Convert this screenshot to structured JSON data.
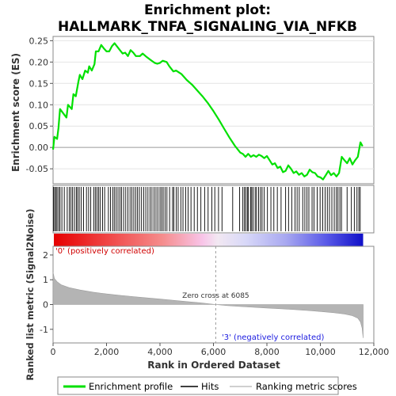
{
  "chart_data": {
    "type": "line",
    "title_line1": "Enrichment plot:",
    "title_line2": "HALLMARK_TNFA_SIGNALING_VIA_NFKB",
    "top_panel": {
      "ylabel": "Enrichment score (ES)",
      "ylim": [
        -0.085,
        0.26
      ],
      "yticks": [
        "0.25",
        "0.20",
        "0.15",
        "0.10",
        "0.05",
        "0.00",
        "-0.05"
      ],
      "ytick_values": [
        0.25,
        0.2,
        0.15,
        0.1,
        0.05,
        0.0,
        -0.05
      ],
      "series_name": "Enrichment profile",
      "series_color": "#00e000",
      "points": [
        [
          0,
          -0.005
        ],
        [
          50,
          0.025
        ],
        [
          150,
          0.02
        ],
        [
          200,
          0.045
        ],
        [
          260,
          0.09
        ],
        [
          500,
          0.07
        ],
        [
          560,
          0.1
        ],
        [
          700,
          0.09
        ],
        [
          760,
          0.125
        ],
        [
          850,
          0.12
        ],
        [
          950,
          0.155
        ],
        [
          1000,
          0.17
        ],
        [
          1100,
          0.16
        ],
        [
          1200,
          0.18
        ],
        [
          1300,
          0.175
        ],
        [
          1350,
          0.19
        ],
        [
          1450,
          0.18
        ],
        [
          1550,
          0.195
        ],
        [
          1600,
          0.225
        ],
        [
          1700,
          0.225
        ],
        [
          1800,
          0.24
        ],
        [
          1900,
          0.232
        ],
        [
          2000,
          0.225
        ],
        [
          2100,
          0.225
        ],
        [
          2200,
          0.237
        ],
        [
          2300,
          0.244
        ],
        [
          2400,
          0.236
        ],
        [
          2500,
          0.228
        ],
        [
          2600,
          0.22
        ],
        [
          2700,
          0.222
        ],
        [
          2800,
          0.214
        ],
        [
          2900,
          0.228
        ],
        [
          3000,
          0.222
        ],
        [
          3100,
          0.214
        ],
        [
          3250,
          0.214
        ],
        [
          3350,
          0.22
        ],
        [
          3500,
          0.212
        ],
        [
          3650,
          0.205
        ],
        [
          3800,
          0.198
        ],
        [
          3900,
          0.196
        ],
        [
          4000,
          0.198
        ],
        [
          4100,
          0.203
        ],
        [
          4250,
          0.2
        ],
        [
          4350,
          0.19
        ],
        [
          4500,
          0.178
        ],
        [
          4600,
          0.18
        ],
        [
          4800,
          0.172
        ],
        [
          5000,
          0.158
        ],
        [
          5200,
          0.147
        ],
        [
          5400,
          0.133
        ],
        [
          5600,
          0.119
        ],
        [
          5800,
          0.103
        ],
        [
          6000,
          0.085
        ],
        [
          6200,
          0.065
        ],
        [
          6400,
          0.044
        ],
        [
          6600,
          0.023
        ],
        [
          6800,
          0.004
        ],
        [
          7000,
          -0.012
        ],
        [
          7100,
          -0.015
        ],
        [
          7200,
          -0.022
        ],
        [
          7300,
          -0.015
        ],
        [
          7400,
          -0.022
        ],
        [
          7500,
          -0.018
        ],
        [
          7600,
          -0.022
        ],
        [
          7700,
          -0.017
        ],
        [
          7800,
          -0.02
        ],
        [
          7900,
          -0.025
        ],
        [
          8000,
          -0.02
        ],
        [
          8100,
          -0.03
        ],
        [
          8200,
          -0.04
        ],
        [
          8300,
          -0.037
        ],
        [
          8400,
          -0.048
        ],
        [
          8500,
          -0.045
        ],
        [
          8600,
          -0.058
        ],
        [
          8700,
          -0.055
        ],
        [
          8800,
          -0.042
        ],
        [
          8900,
          -0.05
        ],
        [
          9000,
          -0.06
        ],
        [
          9100,
          -0.056
        ],
        [
          9200,
          -0.064
        ],
        [
          9300,
          -0.06
        ],
        [
          9400,
          -0.068
        ],
        [
          9500,
          -0.064
        ],
        [
          9600,
          -0.052
        ],
        [
          9700,
          -0.058
        ],
        [
          9800,
          -0.06
        ],
        [
          9900,
          -0.068
        ],
        [
          10000,
          -0.07
        ],
        [
          10100,
          -0.075
        ],
        [
          10200,
          -0.065
        ],
        [
          10300,
          -0.055
        ],
        [
          10400,
          -0.065
        ],
        [
          10500,
          -0.06
        ],
        [
          10600,
          -0.068
        ],
        [
          10700,
          -0.06
        ],
        [
          10800,
          -0.022
        ],
        [
          10900,
          -0.03
        ],
        [
          11000,
          -0.037
        ],
        [
          11100,
          -0.025
        ],
        [
          11200,
          -0.04
        ],
        [
          11300,
          -0.03
        ],
        [
          11400,
          -0.022
        ],
        [
          11500,
          0.012
        ],
        [
          11580,
          0.003
        ]
      ]
    },
    "hits": [
      20,
      60,
      110,
      150,
      210,
      260,
      330,
      420,
      530,
      610,
      670,
      730,
      800,
      870,
      920,
      980,
      1050,
      1140,
      1250,
      1330,
      1410,
      1520,
      1580,
      1640,
      1700,
      1760,
      1850,
      1930,
      2070,
      2150,
      2230,
      2290,
      2360,
      2430,
      2500,
      2560,
      2640,
      2720,
      2800,
      2880,
      2950,
      3020,
      3090,
      3160,
      3230,
      3310,
      3390,
      3470,
      3550,
      3630,
      3700,
      3780,
      3850,
      3920,
      4000,
      4060,
      4120,
      4190,
      4260,
      4360,
      4470,
      4520,
      4610,
      4680,
      4780,
      4860,
      4960,
      5050,
      5160,
      5280,
      5400,
      5530,
      5670,
      5800,
      5940,
      6050,
      6190,
      6320,
      6720,
      6980,
      7100,
      7160,
      7210,
      7270,
      7310,
      7390,
      7430,
      7480,
      7560,
      7610,
      7690,
      7760,
      7820,
      7900,
      8020,
      8150,
      8260,
      8390,
      8530,
      8700,
      8810,
      8930,
      9050,
      9130,
      9210,
      9340,
      9420,
      9500,
      9570,
      9690,
      9760,
      9880,
      9990,
      10090,
      10180,
      10260,
      10340,
      10430,
      10520,
      10600,
      10660,
      10730,
      10790,
      11000,
      11160,
      11270,
      11370,
      11440,
      11490
    ],
    "bottom_panel": {
      "ylabel": "Ranked list metric (Signal2Noise)",
      "xlabel": "Rank in Ordered Dataset",
      "ylim": [
        -1.55,
        2.35
      ],
      "yticks": [
        "2",
        "1",
        "0",
        "-1"
      ],
      "ytick_values": [
        2,
        1,
        0,
        -1
      ],
      "metric_points": [
        [
          0,
          1.3
        ],
        [
          50,
          1.05
        ],
        [
          150,
          0.92
        ],
        [
          300,
          0.8
        ],
        [
          600,
          0.68
        ],
        [
          1000,
          0.59
        ],
        [
          1500,
          0.5
        ],
        [
          2000,
          0.43
        ],
        [
          2500,
          0.37
        ],
        [
          3000,
          0.32
        ],
        [
          3500,
          0.27
        ],
        [
          4000,
          0.22
        ],
        [
          4500,
          0.17
        ],
        [
          5000,
          0.12
        ],
        [
          5500,
          0.07
        ],
        [
          6085,
          0.0
        ],
        [
          6500,
          -0.04
        ],
        [
          7000,
          -0.08
        ],
        [
          7500,
          -0.11
        ],
        [
          8000,
          -0.14
        ],
        [
          8500,
          -0.17
        ],
        [
          9000,
          -0.2
        ],
        [
          9500,
          -0.24
        ],
        [
          10000,
          -0.28
        ],
        [
          10500,
          -0.33
        ],
        [
          10900,
          -0.38
        ],
        [
          11200,
          -0.45
        ],
        [
          11400,
          -0.55
        ],
        [
          11500,
          -0.7
        ],
        [
          11560,
          -0.95
        ],
        [
          11600,
          -1.35
        ]
      ],
      "zero_cross_label": "Zero cross at 6085",
      "zero_cross": 6085,
      "pos_label": "'0' (positively correlated)",
      "neg_label": "'3' (negatively correlated)"
    },
    "xlim": [
      0,
      12000
    ],
    "xticks": [
      "0",
      "2,000",
      "4,000",
      "6,000",
      "8,000",
      "10,000",
      "12,000"
    ],
    "xtick_values": [
      0,
      2000,
      4000,
      6000,
      8000,
      10000,
      12000
    ],
    "n_ranked": 11600,
    "legend": {
      "items": [
        "Enrichment profile",
        "Hits",
        "Ranking metric scores"
      ],
      "colors": [
        "#00e000",
        "#000000",
        "#c0c0c0"
      ]
    }
  }
}
